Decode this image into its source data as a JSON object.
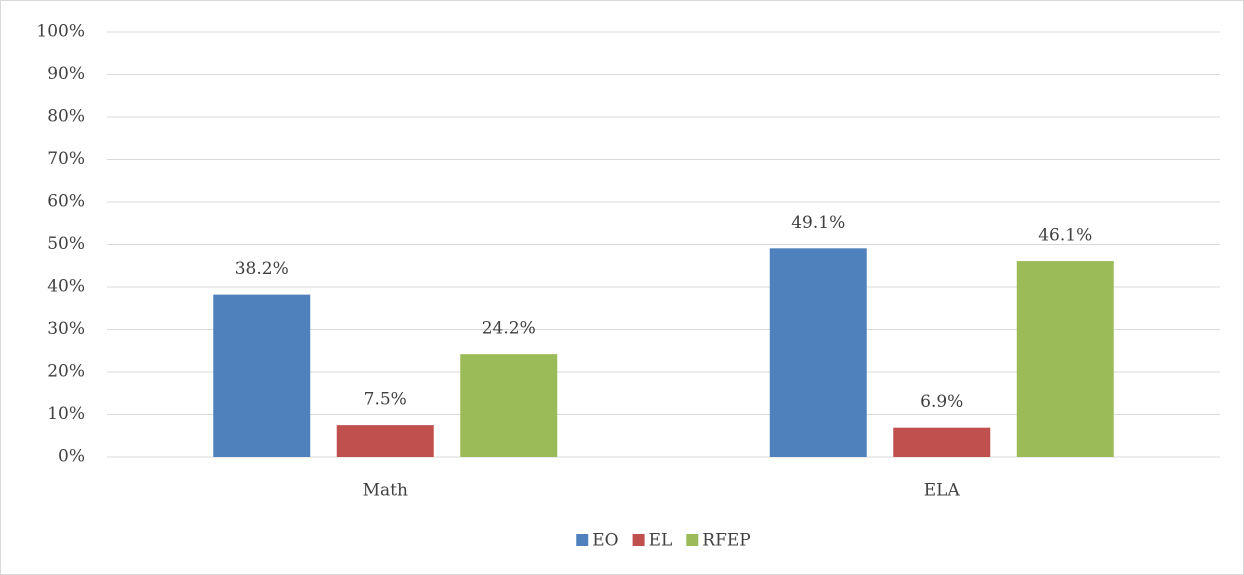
{
  "chart_data": {
    "type": "bar",
    "categories": [
      "Math",
      "ELA"
    ],
    "series": [
      {
        "name": "EO",
        "color": "#4f81bd",
        "values": [
          38.2,
          49.1
        ],
        "value_labels": [
          "38.2%",
          "49.1%"
        ]
      },
      {
        "name": "EL",
        "color": "#c0504d",
        "values": [
          7.5,
          6.9
        ],
        "value_labels": [
          "7.5%",
          "6.9%"
        ]
      },
      {
        "name": "RFEP",
        "color": "#9bbb59",
        "values": [
          24.2,
          46.1
        ],
        "value_labels": [
          "24.2%",
          "46.1%"
        ]
      }
    ],
    "ylim": [
      0,
      100
    ],
    "yticks": [
      {
        "value": 0,
        "label": "0%"
      },
      {
        "value": 10,
        "label": "10%"
      },
      {
        "value": 20,
        "label": "20%"
      },
      {
        "value": 30,
        "label": "30%"
      },
      {
        "value": 40,
        "label": "40%"
      },
      {
        "value": 50,
        "label": "50%"
      },
      {
        "value": 60,
        "label": "60%"
      },
      {
        "value": 70,
        "label": "70%"
      },
      {
        "value": 80,
        "label": "80%"
      },
      {
        "value": 90,
        "label": "90%"
      },
      {
        "value": 100,
        "label": "100%"
      }
    ],
    "grid": true,
    "legend": "bottom"
  }
}
